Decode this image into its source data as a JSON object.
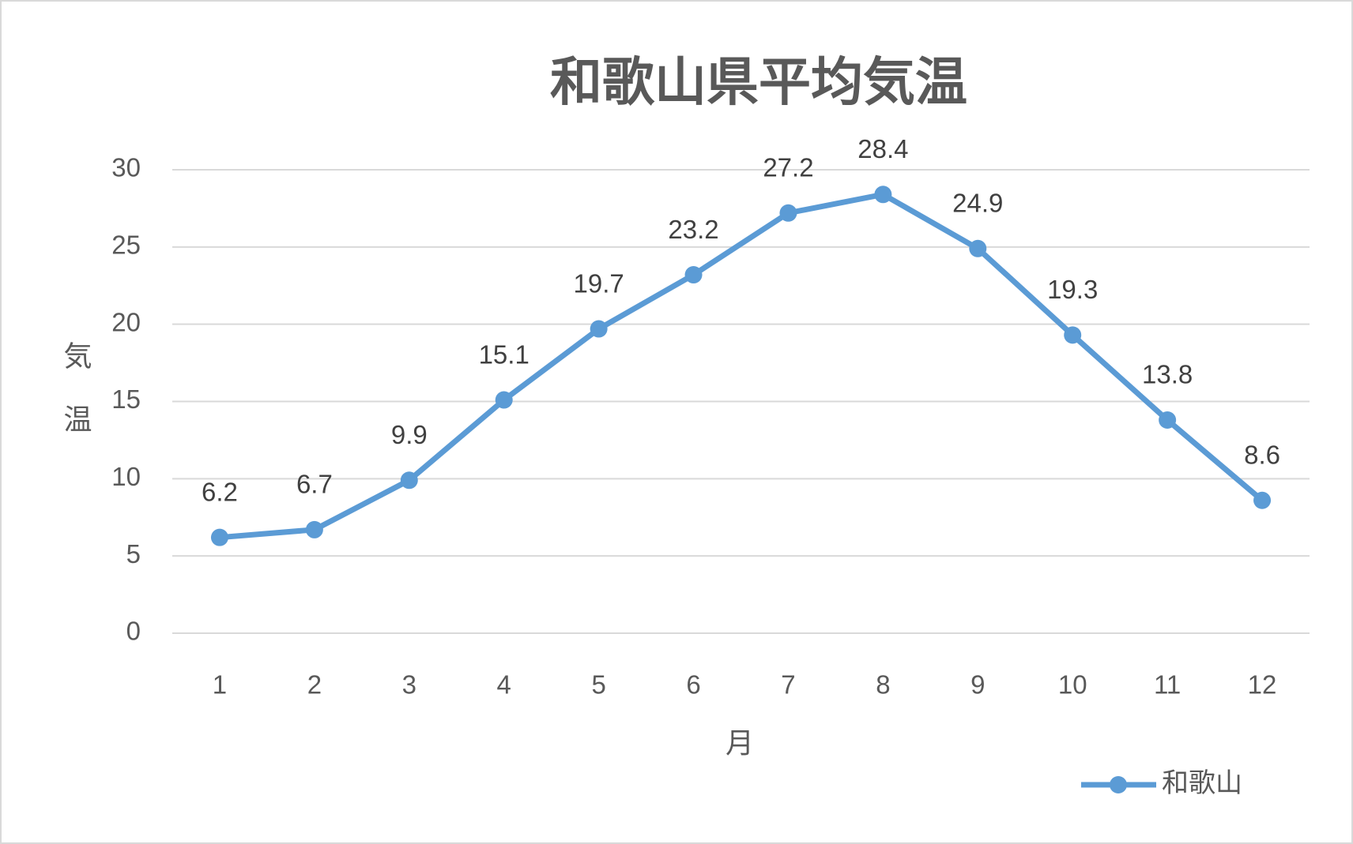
{
  "chart_data": {
    "type": "line",
    "title": "和歌山県平均気温",
    "x_label": "月",
    "y_label": "気温",
    "categories": [
      "1",
      "2",
      "3",
      "4",
      "5",
      "6",
      "7",
      "8",
      "9",
      "10",
      "11",
      "12"
    ],
    "series": [
      {
        "name": "和歌山",
        "color": "#5b9bd5",
        "values": [
          6.2,
          6.7,
          9.9,
          15.1,
          19.7,
          23.2,
          27.2,
          28.4,
          24.9,
          19.3,
          13.8,
          8.6
        ]
      }
    ],
    "ylim": [
      0,
      30
    ],
    "yticks": [
      0,
      5,
      10,
      15,
      20,
      25,
      30
    ],
    "grid": true,
    "legend": "bottom-right"
  }
}
